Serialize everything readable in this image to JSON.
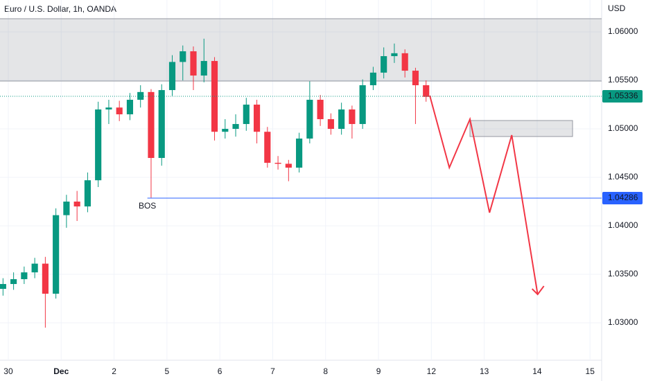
{
  "chart_data": {
    "type": "candlestick",
    "title": "Euro / U.S. Dollar, 1h, OANDA",
    "currency": "USD",
    "x": [
      -0.1,
      0.1,
      0.3,
      0.5,
      0.7,
      0.9,
      1.1,
      1.3,
      1.5,
      1.7,
      1.9,
      2.1,
      2.3,
      2.5,
      2.7,
      2.9,
      3.1,
      3.3,
      3.5,
      3.7,
      3.9,
      4.1,
      4.3,
      4.5,
      4.7,
      4.9,
      5.1,
      5.3,
      5.5,
      5.7,
      5.9,
      6.1,
      6.3,
      6.5,
      6.7,
      6.9,
      7.1,
      7.3,
      7.5,
      7.7,
      7.9
    ],
    "open": [
      1.0335,
      1.034,
      1.0345,
      1.0352,
      1.0361,
      1.033,
      1.0411,
      1.0425,
      1.042,
      1.0447,
      1.052,
      1.0522,
      1.0515,
      1.053,
      1.0538,
      1.047,
      1.054,
      1.0569,
      1.058,
      1.0555,
      1.057,
      1.0497,
      1.05,
      1.0505,
      1.0525,
      1.0497,
      1.0465,
      1.0464,
      1.046,
      1.049,
      1.053,
      1.051,
      1.05,
      1.052,
      1.0505,
      1.0545,
      1.0558,
      1.0575,
      1.0578,
      1.056,
      1.0545
    ],
    "high": [
      1.0346,
      1.0352,
      1.0358,
      1.0367,
      1.0368,
      1.0418,
      1.0432,
      1.0436,
      1.0455,
      1.0528,
      1.053,
      1.0529,
      1.0537,
      1.0545,
      1.0541,
      1.0546,
      1.0576,
      1.0586,
      1.0585,
      1.0593,
      1.0574,
      1.051,
      1.0515,
      1.0532,
      1.053,
      1.0502,
      1.0472,
      1.0468,
      1.0496,
      1.0549,
      1.0535,
      1.0516,
      1.0527,
      1.0524,
      1.0551,
      1.0564,
      1.0584,
      1.0588,
      1.0582,
      1.0563,
      1.055
    ],
    "low": [
      1.0328,
      1.0334,
      1.034,
      1.0346,
      1.0295,
      1.0325,
      1.0398,
      1.0405,
      1.0414,
      1.044,
      1.0505,
      1.0508,
      1.0509,
      1.0522,
      1.0429,
      1.0462,
      1.0534,
      1.055,
      1.054,
      1.0548,
      1.0488,
      1.049,
      1.0492,
      1.0498,
      1.0485,
      1.046,
      1.0458,
      1.0446,
      1.0455,
      1.0485,
      1.0503,
      1.0494,
      1.0494,
      1.049,
      1.05,
      1.054,
      1.0552,
      1.0568,
      1.0553,
      1.0505,
      1.0528
    ],
    "close": [
      1.034,
      1.0345,
      1.0352,
      1.0361,
      1.033,
      1.0411,
      1.0425,
      1.042,
      1.0447,
      1.052,
      1.0522,
      1.0515,
      1.053,
      1.0538,
      1.047,
      1.054,
      1.0569,
      1.058,
      1.0555,
      1.057,
      1.0497,
      1.05,
      1.0505,
      1.0525,
      1.0497,
      1.0465,
      1.0464,
      1.046,
      1.049,
      1.053,
      1.051,
      1.05,
      1.052,
      1.0505,
      1.0545,
      1.0558,
      1.0575,
      1.0578,
      1.056,
      1.0545,
      1.0533
    ],
    "up_color": "#089981",
    "down_color": "#f23645",
    "xlim": [
      -0.157,
      11.22
    ],
    "ylim": [
      1.02614,
      1.06329
    ],
    "xticks": [
      {
        "value": 0,
        "label": "30"
      },
      {
        "value": 1,
        "label": "Dec"
      },
      {
        "value": 2,
        "label": "2"
      },
      {
        "value": 3,
        "label": "5"
      },
      {
        "value": 4,
        "label": "6"
      },
      {
        "value": 5,
        "label": "7"
      },
      {
        "value": 6,
        "label": "8"
      },
      {
        "value": 7,
        "label": "9"
      },
      {
        "value": 8,
        "label": "12"
      },
      {
        "value": 9,
        "label": "13"
      },
      {
        "value": 10,
        "label": "14"
      },
      {
        "value": 11,
        "label": "15"
      }
    ],
    "yticks": [
      {
        "value": 1.06,
        "label": "1.06000"
      },
      {
        "value": 1.055,
        "label": "1.05500"
      },
      {
        "value": 1.05,
        "label": "1.05000"
      },
      {
        "value": 1.045,
        "label": "1.04500"
      },
      {
        "value": 1.04,
        "label": "1.04000"
      },
      {
        "value": 1.035,
        "label": "1.03500"
      },
      {
        "value": 1.03,
        "label": "1.03000"
      }
    ],
    "grid": true,
    "last_price": 1.05336,
    "last_price_color": "#089981",
    "bos": {
      "label": "BOS",
      "price": 1.04286,
      "x_start": 2.63,
      "color": "#2962ff"
    },
    "zones": [
      {
        "x": [
          -0.157,
          11.22
        ],
        "y": [
          1.05493,
          1.06136
        ]
      },
      {
        "x": [
          8.73,
          10.67
        ],
        "y": [
          1.04921,
          1.05086
        ]
      }
    ],
    "projection": {
      "color": "#f23645",
      "x": [
        7.97,
        8.34,
        8.73,
        9.1,
        9.52,
        10.01
      ],
      "y": [
        1.05343,
        1.046,
        1.051,
        1.04136,
        1.04936,
        1.03293
      ]
    }
  }
}
